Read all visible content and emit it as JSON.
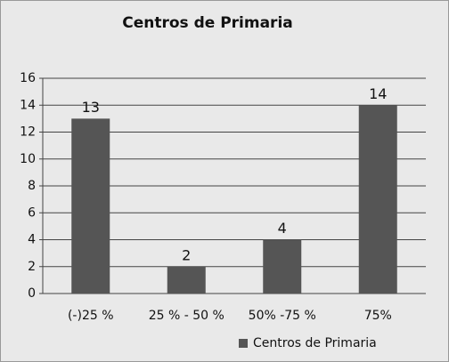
{
  "chart_data": {
    "type": "bar",
    "title": "Centros de Primaria",
    "categories": [
      "(-)25 %",
      "25 % - 50 %",
      "50% -75 %",
      "75%"
    ],
    "series": [
      {
        "name": "Centros de Primaria",
        "color": "#555555",
        "values": [
          13,
          2,
          4,
          14
        ]
      }
    ],
    "ylim": [
      0,
      16
    ],
    "yticks": [
      0,
      2,
      4,
      6,
      8,
      10,
      12,
      14,
      16
    ],
    "grid": true,
    "legend": "bottom-right"
  }
}
